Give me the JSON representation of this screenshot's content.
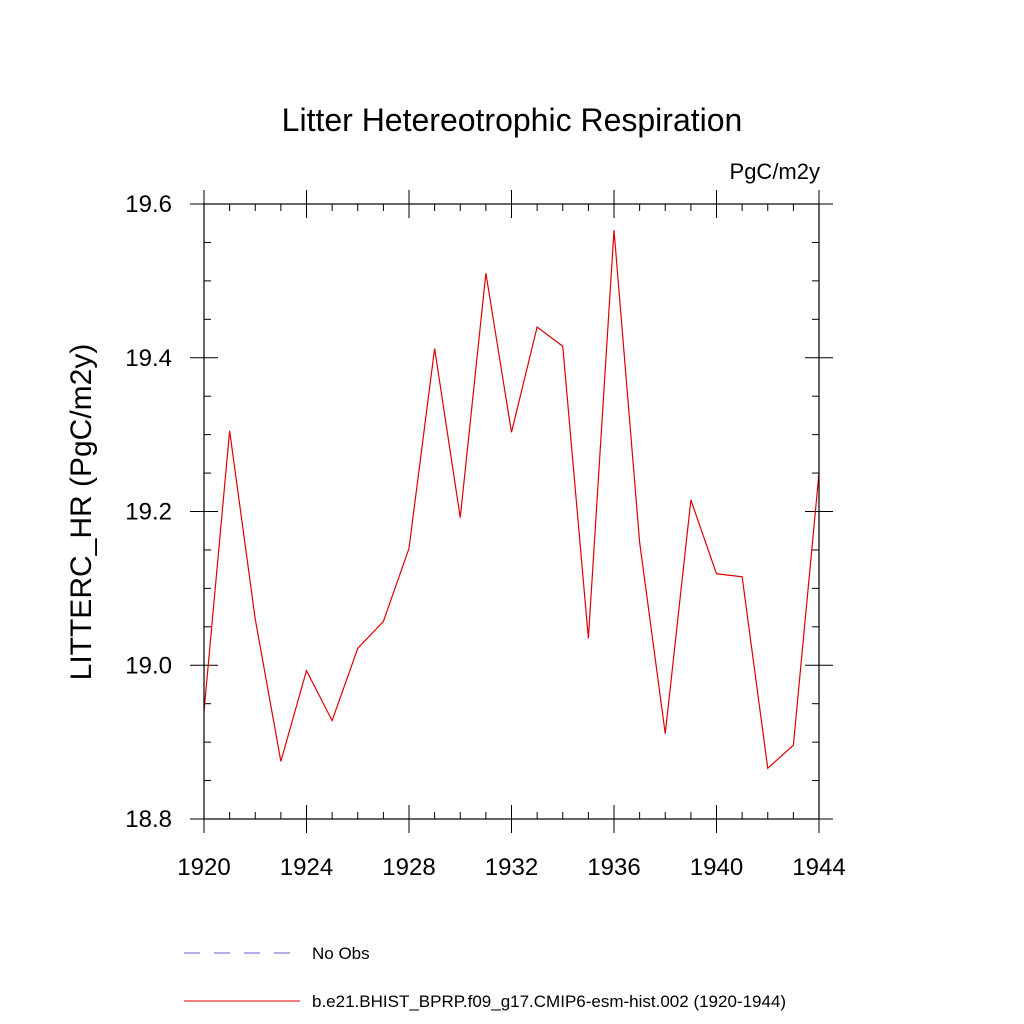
{
  "chart_data": {
    "type": "line",
    "title": "Litter Hetereotrophic Respiration",
    "units_label": "PgC/m2y",
    "ylabel": "LITTERC_HR  (PgC/m2y)",
    "xlabel": "",
    "xlim": [
      1920,
      1944
    ],
    "ylim": [
      18.8,
      19.6
    ],
    "x_ticks": [
      1920,
      1924,
      1928,
      1932,
      1936,
      1940,
      1944
    ],
    "x_tick_labels": [
      "1920",
      "1924",
      "1928",
      "1932",
      "1936",
      "1940",
      "1944"
    ],
    "y_ticks": [
      18.8,
      19.0,
      19.2,
      19.4,
      19.6
    ],
    "y_tick_labels": [
      "18.8",
      "19.0",
      "19.2",
      "19.4",
      "19.6"
    ],
    "x_minor_step": 1,
    "y_minor_step": 0.05,
    "grid": false,
    "legend_position": "bottom",
    "legend": [
      {
        "label": "No Obs",
        "style": "dashed",
        "color": "#6a5acd"
      },
      {
        "label": "b.e21.BHIST_BPRP.f09_g17.CMIP6-esm-hist.002 (1920-1944)",
        "style": "solid",
        "color": "#e00000"
      }
    ],
    "series": [
      {
        "name": "b.e21.BHIST_BPRP.f09_g17.CMIP6-esm-hist.002 (1920-1944)",
        "color": "#e00000",
        "x": [
          1920,
          1921,
          1922,
          1923,
          1924,
          1925,
          1926,
          1927,
          1928,
          1929,
          1930,
          1931,
          1932,
          1933,
          1934,
          1935,
          1936,
          1937,
          1938,
          1939,
          1940,
          1941,
          1942,
          1943,
          1944
        ],
        "y": [
          18.94,
          19.305,
          19.06,
          18.875,
          18.993,
          18.928,
          19.022,
          19.057,
          19.152,
          19.412,
          19.192,
          19.51,
          19.303,
          19.44,
          19.415,
          19.035,
          19.566,
          19.16,
          18.911,
          19.215,
          19.119,
          19.115,
          18.866,
          18.896,
          19.25
        ]
      }
    ]
  }
}
